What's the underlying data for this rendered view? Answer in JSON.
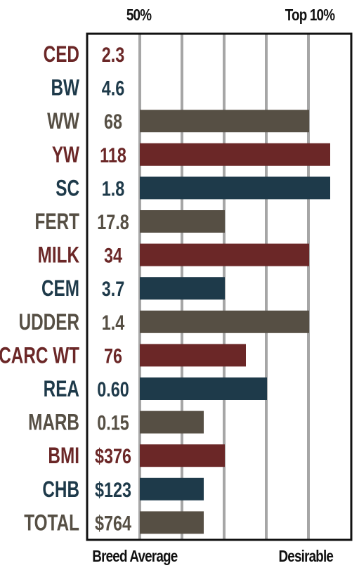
{
  "header": {
    "left": "50%",
    "right": "Top 10%"
  },
  "footer": {
    "left": "Breed Average",
    "right": "Desirable"
  },
  "colors": {
    "red": "#6b2727",
    "blue": "#1e3a4a",
    "brown": "#564f44",
    "grid": "#a6a6a6",
    "border": "#111111"
  },
  "chart_data": {
    "type": "bar",
    "orientation": "horizontal",
    "categories": [
      "CED",
      "BW",
      "WW",
      "YW",
      "SC",
      "FERT",
      "MILK",
      "CEM",
      "UDDER",
      "CARC WT",
      "REA",
      "MARB",
      "BMI",
      "CHB",
      "TOTAL"
    ],
    "value_labels": [
      "2.3",
      "4.6",
      "68",
      "118",
      "1.8",
      "17.8",
      "34",
      "3.7",
      "1.4",
      "76",
      "0.60",
      "0.15",
      "$376",
      "$123",
      "$764"
    ],
    "values": [
      0,
      0,
      40,
      45,
      45,
      20,
      40,
      20,
      40,
      25,
      30,
      15,
      20,
      15,
      15
    ],
    "bar_colors": [
      "red",
      "blue",
      "brown",
      "red",
      "blue",
      "brown",
      "red",
      "blue",
      "brown",
      "red",
      "blue",
      "brown",
      "red",
      "blue",
      "brown"
    ],
    "xlim": [
      50,
      0
    ],
    "grid": true
  }
}
